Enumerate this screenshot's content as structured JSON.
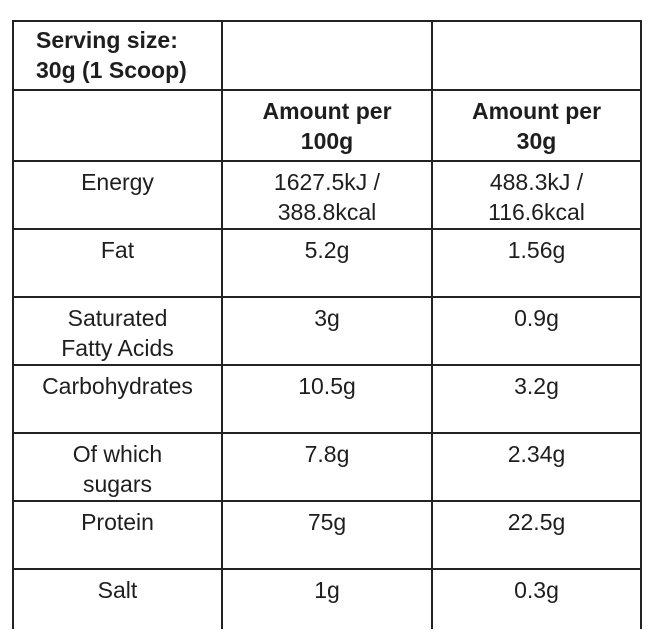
{
  "table": {
    "serving_size_line1": "Serving size:",
    "serving_size_line2": "30g (1 Scoop)",
    "col2_header_line1": "Amount per",
    "col2_header_line2": "100g",
    "col3_header_line1": "Amount per",
    "col3_header_line2": "30g",
    "rows": [
      {
        "name1": "Energy",
        "name2": "",
        "per100_1": "1627.5kJ /",
        "per100_2": "388.8kcal",
        "per30_1": "488.3kJ /",
        "per30_2": "116.6kcal"
      },
      {
        "name1": "Fat",
        "name2": "",
        "per100_1": "5.2g",
        "per100_2": "",
        "per30_1": "1.56g",
        "per30_2": ""
      },
      {
        "name1": "Saturated",
        "name2": "Fatty Acids",
        "per100_1": "3g",
        "per100_2": "",
        "per30_1": "0.9g",
        "per30_2": ""
      },
      {
        "name1": "Carbohydrates",
        "name2": "",
        "per100_1": "10.5g",
        "per100_2": "",
        "per30_1": "3.2g",
        "per30_2": ""
      },
      {
        "name1": "Of which",
        "name2": "sugars",
        "per100_1": "7.8g",
        "per100_2": "",
        "per30_1": "2.34g",
        "per30_2": ""
      },
      {
        "name1": "Protein",
        "name2": "",
        "per100_1": "75g",
        "per100_2": "",
        "per30_1": "22.5g",
        "per30_2": ""
      },
      {
        "name1": "Salt",
        "name2": "",
        "per100_1": "1g",
        "per100_2": "",
        "per30_1": "0.3g",
        "per30_2": ""
      }
    ]
  }
}
